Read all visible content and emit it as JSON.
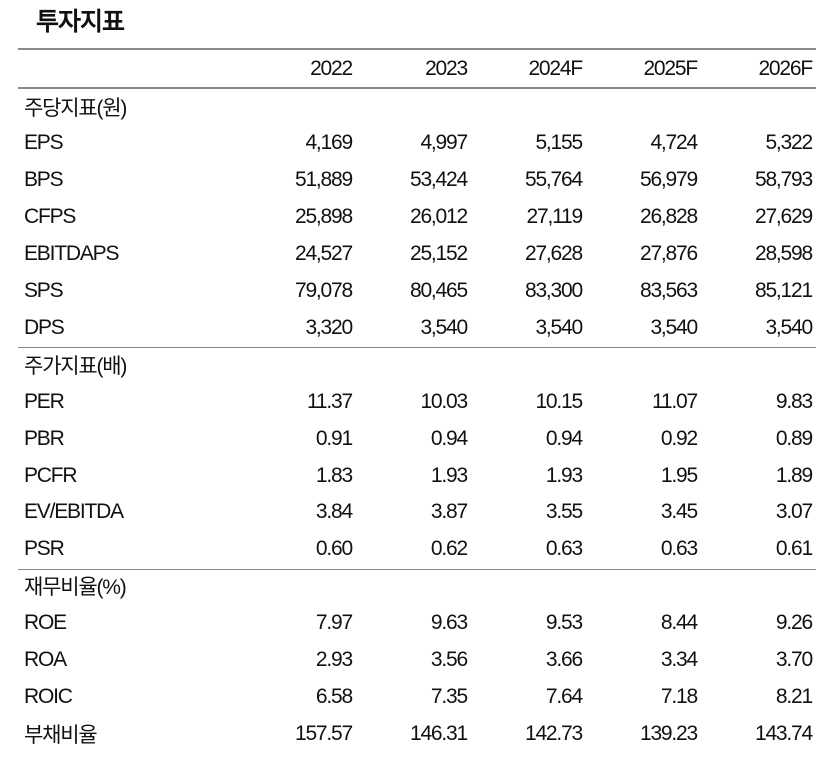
{
  "title": "투자지표",
  "columns": [
    "2022",
    "2023",
    "2024F",
    "2025F",
    "2026F"
  ],
  "sections": [
    {
      "name": "주당지표(원)",
      "rows": [
        {
          "label": "EPS",
          "values": [
            "4,169",
            "4,997",
            "5,155",
            "4,724",
            "5,322"
          ]
        },
        {
          "label": "BPS",
          "values": [
            "51,889",
            "53,424",
            "55,764",
            "56,979",
            "58,793"
          ]
        },
        {
          "label": "CFPS",
          "values": [
            "25,898",
            "26,012",
            "27,119",
            "26,828",
            "27,629"
          ]
        },
        {
          "label": "EBITDAPS",
          "values": [
            "24,527",
            "25,152",
            "27,628",
            "27,876",
            "28,598"
          ]
        },
        {
          "label": "SPS",
          "values": [
            "79,078",
            "80,465",
            "83,300",
            "83,563",
            "85,121"
          ]
        },
        {
          "label": "DPS",
          "values": [
            "3,320",
            "3,540",
            "3,540",
            "3,540",
            "3,540"
          ]
        }
      ]
    },
    {
      "name": "주가지표(배)",
      "rows": [
        {
          "label": "PER",
          "values": [
            "11.37",
            "10.03",
            "10.15",
            "11.07",
            "9.83"
          ]
        },
        {
          "label": "PBR",
          "values": [
            "0.91",
            "0.94",
            "0.94",
            "0.92",
            "0.89"
          ]
        },
        {
          "label": "PCFR",
          "values": [
            "1.83",
            "1.93",
            "1.93",
            "1.95",
            "1.89"
          ]
        },
        {
          "label": "EV/EBITDA",
          "values": [
            "3.84",
            "3.87",
            "3.55",
            "3.45",
            "3.07"
          ]
        },
        {
          "label": "PSR",
          "values": [
            "0.60",
            "0.62",
            "0.63",
            "0.63",
            "0.61"
          ]
        }
      ]
    },
    {
      "name": "재무비율(%)",
      "rows": [
        {
          "label": "ROE",
          "values": [
            "7.97",
            "9.63",
            "9.53",
            "8.44",
            "9.26"
          ]
        },
        {
          "label": "ROA",
          "values": [
            "2.93",
            "3.56",
            "3.66",
            "3.34",
            "3.70"
          ]
        },
        {
          "label": "ROIC",
          "values": [
            "6.58",
            "7.35",
            "7.64",
            "7.18",
            "8.21"
          ]
        },
        {
          "label": "부채비율",
          "values": [
            "157.57",
            "146.31",
            "142.73",
            "139.23",
            "143.74"
          ]
        }
      ]
    }
  ]
}
